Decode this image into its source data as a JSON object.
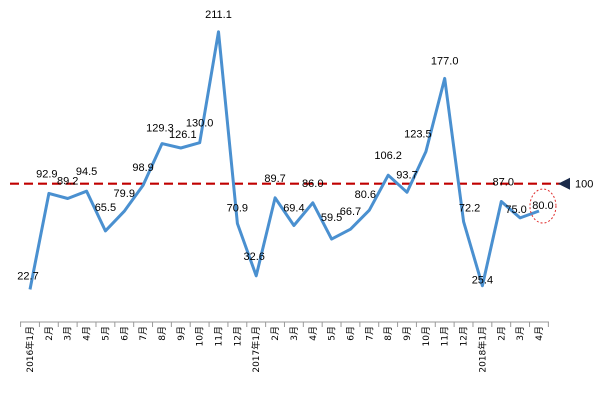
{
  "chart_data": {
    "type": "line",
    "categories": [
      "2016年1月",
      "2月",
      "3月",
      "4月",
      "5月",
      "6月",
      "7月",
      "8月",
      "9月",
      "10月",
      "11月",
      "12月",
      "2017年1月",
      "2月",
      "3月",
      "4月",
      "5月",
      "6月",
      "7月",
      "8月",
      "9月",
      "10月",
      "11月",
      "12月",
      "2018年1月",
      "2月",
      "3月",
      "4月"
    ],
    "values": [
      22.7,
      92.9,
      89.2,
      94.5,
      65.5,
      79.9,
      98.9,
      129.3,
      126.1,
      130.0,
      211.1,
      70.9,
      32.6,
      89.7,
      69.4,
      86.0,
      59.5,
      66.7,
      80.6,
      106.2,
      93.7,
      123.5,
      177.0,
      72.2,
      25.4,
      87.0,
      75.0,
      80.0
    ],
    "value_labels": [
      "22.7",
      "92.9",
      "89.2",
      "94.5",
      "65.5",
      "79.9",
      "98.9",
      "129.3",
      "126.1",
      "130.0",
      "211.1",
      "70.9",
      "32.6",
      "89.7",
      "69.4",
      "86.0",
      "59.5",
      "66.7",
      "80.6",
      "106.2",
      "93.7",
      "123.5",
      "177.0",
      "72.2",
      "25.4",
      "87.0",
      "75.0",
      "80.0"
    ],
    "reference_line": {
      "value": 100,
      "label": "100",
      "color": "#c00000",
      "style": "dashed"
    },
    "line_color": "#4a90d0",
    "highlight": {
      "index": 27,
      "color": "#e03030"
    },
    "title": "",
    "xlabel": "",
    "ylabel": "",
    "ylim": [
      0,
      220
    ],
    "grid": false,
    "legend": "none"
  }
}
